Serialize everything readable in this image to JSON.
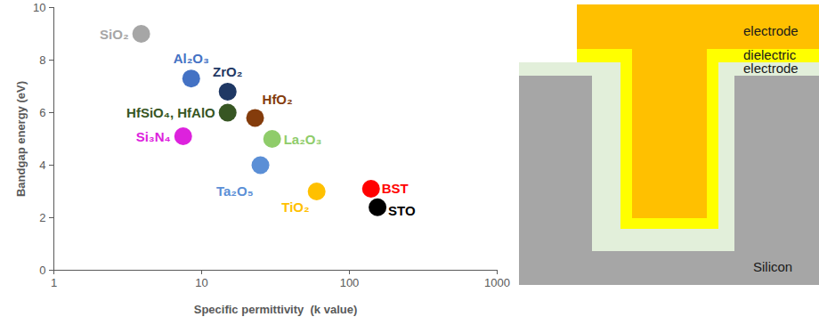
{
  "chart_data": {
    "type": "scatter",
    "x_label": "Specific permittivity  (k value)",
    "y_label": "Bandgap energy (eV)",
    "log": "x",
    "grid": false,
    "xlim": [
      1,
      1000
    ],
    "xticks": [
      1,
      10,
      100,
      1000
    ],
    "ylim": [
      0,
      10
    ],
    "yticks": [
      0,
      2,
      4,
      6,
      8,
      10
    ],
    "points": [
      {
        "label": "SiO₂",
        "x": 3.9,
        "y": 9.0,
        "color": "#a6a6a6"
      },
      {
        "label": "Al₂O₃",
        "x": 8.5,
        "y": 7.3,
        "color": "#4472c4"
      },
      {
        "label": "ZrO₂",
        "x": 15,
        "y": 6.8,
        "color": "#1f3864"
      },
      {
        "label": "HfSiO₄, HfAlO",
        "x": 15,
        "y": 6.0,
        "color": "#375623"
      },
      {
        "label": "HfO₂",
        "x": 23,
        "y": 5.8,
        "color": "#843c0c"
      },
      {
        "label": "Si₃N₄",
        "x": 7.5,
        "y": 5.1,
        "color": "#dd22dd"
      },
      {
        "label": "La₂O₃",
        "x": 30,
        "y": 5.0,
        "color": "#8fcc6a"
      },
      {
        "label": "Ta₂O₅",
        "x": 25,
        "y": 4.0,
        "color": "#5b8fd6"
      },
      {
        "label": "TiO₂",
        "x": 60,
        "y": 3.0,
        "color": "#ffc000"
      },
      {
        "label": "BST",
        "x": 140,
        "y": 3.1,
        "color": "#ff0000"
      },
      {
        "label": "STO",
        "x": 155,
        "y": 2.4,
        "color": "#000000"
      }
    ]
  },
  "diagram": {
    "labels": [
      "electrode",
      "dielectric",
      "electrode",
      "Silicon"
    ]
  }
}
